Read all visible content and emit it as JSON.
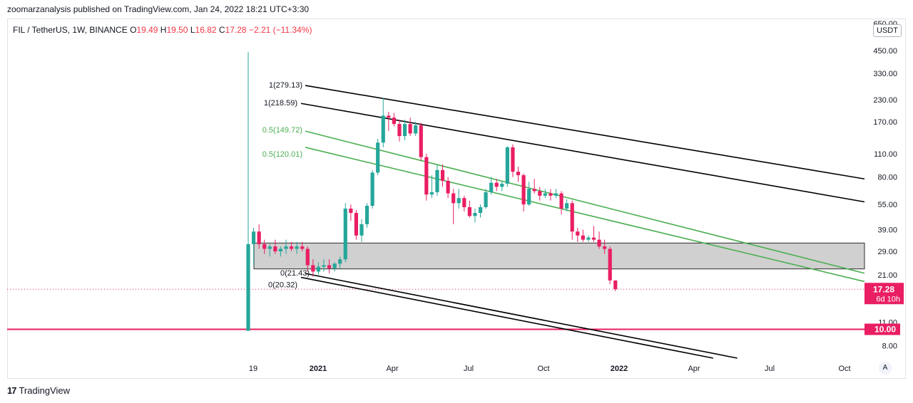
{
  "header": {
    "caption": "zoomarzanalysis published on TradingView.com, Jan 24, 2022 18:21 UTC+3:30"
  },
  "legend": {
    "symbol": "FIL / TetherUS, 1W, BINANCE",
    "open_label": "O",
    "open": "19.49",
    "high_label": "H",
    "high": "19.50",
    "low_label": "L",
    "low": "16.82",
    "close_label": "C",
    "close": "17.28",
    "change": "−2.21 (−11.34%)"
  },
  "price_axis": {
    "unit": "USDT",
    "current_price": "17.28",
    "countdown": "6d 10h",
    "line_price": "10.00"
  },
  "footer": {
    "brand": "TradingView"
  },
  "auto_button": "A",
  "colors": {
    "up": "#26a69a",
    "down": "#e91e63",
    "fib_green": "#4caf50",
    "channel": "#000000",
    "hline": "#e91e63",
    "zone_fill": "#c8c8c8"
  },
  "chart_data": {
    "type": "candlestick",
    "yscale": "log",
    "y_ticks": [
      "650.00",
      "450.00",
      "330.00",
      "230.00",
      "170.00",
      "110.00",
      "80.00",
      "55.00",
      "39.00",
      "29.00",
      "21.00",
      "11.00",
      "8.00"
    ],
    "x_ticks": [
      "19",
      "2021",
      "Apr",
      "Jul",
      "Oct",
      "2022",
      "Apr",
      "Jul",
      "Oct"
    ],
    "candles": [
      {
        "o": 9.8,
        "h": 440,
        "l": 9.8,
        "c": 32
      },
      {
        "o": 32,
        "h": 40,
        "l": 24,
        "c": 38
      },
      {
        "o": 38,
        "h": 42,
        "l": 30,
        "c": 32
      },
      {
        "o": 32,
        "h": 34,
        "l": 28,
        "c": 30
      },
      {
        "o": 30,
        "h": 32,
        "l": 27,
        "c": 31
      },
      {
        "o": 31,
        "h": 34,
        "l": 28,
        "c": 29
      },
      {
        "o": 29,
        "h": 31,
        "l": 27,
        "c": 30
      },
      {
        "o": 30,
        "h": 34,
        "l": 28,
        "c": 31
      },
      {
        "o": 31,
        "h": 33,
        "l": 29,
        "c": 30
      },
      {
        "o": 30,
        "h": 33,
        "l": 28,
        "c": 31
      },
      {
        "o": 31,
        "h": 33,
        "l": 29,
        "c": 30
      },
      {
        "o": 30,
        "h": 31,
        "l": 22,
        "c": 24
      },
      {
        "o": 24,
        "h": 26,
        "l": 20.5,
        "c": 22
      },
      {
        "o": 22,
        "h": 25,
        "l": 21,
        "c": 23.5
      },
      {
        "o": 23.5,
        "h": 26,
        "l": 22,
        "c": 24
      },
      {
        "o": 24,
        "h": 26,
        "l": 21.5,
        "c": 23
      },
      {
        "o": 23,
        "h": 25,
        "l": 22,
        "c": 24.5
      },
      {
        "o": 24.5,
        "h": 27,
        "l": 23,
        "c": 26
      },
      {
        "o": 26,
        "h": 56,
        "l": 25,
        "c": 52
      },
      {
        "o": 52,
        "h": 55,
        "l": 44,
        "c": 49
      },
      {
        "o": 49,
        "h": 51,
        "l": 34,
        "c": 36
      },
      {
        "o": 36,
        "h": 45,
        "l": 33,
        "c": 42
      },
      {
        "o": 42,
        "h": 56,
        "l": 40,
        "c": 54
      },
      {
        "o": 54,
        "h": 88,
        "l": 52,
        "c": 85
      },
      {
        "o": 85,
        "h": 135,
        "l": 82,
        "c": 128
      },
      {
        "o": 128,
        "h": 236,
        "l": 120,
        "c": 185
      },
      {
        "o": 185,
        "h": 195,
        "l": 150,
        "c": 180
      },
      {
        "o": 180,
        "h": 192,
        "l": 160,
        "c": 165
      },
      {
        "o": 165,
        "h": 175,
        "l": 130,
        "c": 140
      },
      {
        "o": 140,
        "h": 175,
        "l": 132,
        "c": 165
      },
      {
        "o": 165,
        "h": 180,
        "l": 140,
        "c": 145
      },
      {
        "o": 145,
        "h": 170,
        "l": 140,
        "c": 162
      },
      {
        "o": 162,
        "h": 168,
        "l": 100,
        "c": 105
      },
      {
        "o": 105,
        "h": 110,
        "l": 58,
        "c": 63
      },
      {
        "o": 63,
        "h": 82,
        "l": 60,
        "c": 65
      },
      {
        "o": 65,
        "h": 95,
        "l": 62,
        "c": 88
      },
      {
        "o": 88,
        "h": 95,
        "l": 70,
        "c": 76
      },
      {
        "o": 76,
        "h": 80,
        "l": 60,
        "c": 64
      },
      {
        "o": 64,
        "h": 68,
        "l": 42,
        "c": 56
      },
      {
        "o": 56,
        "h": 68,
        "l": 52,
        "c": 60
      },
      {
        "o": 60,
        "h": 62,
        "l": 50,
        "c": 53
      },
      {
        "o": 53,
        "h": 58,
        "l": 46,
        "c": 47
      },
      {
        "o": 47,
        "h": 52,
        "l": 43,
        "c": 49
      },
      {
        "o": 49,
        "h": 55,
        "l": 46,
        "c": 53
      },
      {
        "o": 53,
        "h": 68,
        "l": 52,
        "c": 65
      },
      {
        "o": 65,
        "h": 80,
        "l": 63,
        "c": 74
      },
      {
        "o": 74,
        "h": 78,
        "l": 66,
        "c": 70
      },
      {
        "o": 70,
        "h": 76,
        "l": 66,
        "c": 73
      },
      {
        "o": 73,
        "h": 122,
        "l": 70,
        "c": 120
      },
      {
        "o": 120,
        "h": 125,
        "l": 80,
        "c": 86
      },
      {
        "o": 86,
        "h": 92,
        "l": 75,
        "c": 82
      },
      {
        "o": 82,
        "h": 84,
        "l": 50,
        "c": 55
      },
      {
        "o": 55,
        "h": 75,
        "l": 54,
        "c": 68
      },
      {
        "o": 68,
        "h": 78,
        "l": 64,
        "c": 66
      },
      {
        "o": 66,
        "h": 70,
        "l": 58,
        "c": 62
      },
      {
        "o": 62,
        "h": 68,
        "l": 60,
        "c": 64
      },
      {
        "o": 64,
        "h": 68,
        "l": 58,
        "c": 62
      },
      {
        "o": 62,
        "h": 68,
        "l": 60,
        "c": 64
      },
      {
        "o": 64,
        "h": 66,
        "l": 48,
        "c": 52
      },
      {
        "o": 52,
        "h": 59,
        "l": 50,
        "c": 56
      },
      {
        "o": 56,
        "h": 58,
        "l": 34,
        "c": 38
      },
      {
        "o": 38,
        "h": 40,
        "l": 33,
        "c": 36
      },
      {
        "o": 36,
        "h": 39,
        "l": 33,
        "c": 34
      },
      {
        "o": 34,
        "h": 36,
        "l": 33,
        "c": 35
      },
      {
        "o": 35,
        "h": 41,
        "l": 33,
        "c": 34
      },
      {
        "o": 34,
        "h": 38,
        "l": 30,
        "c": 31
      },
      {
        "o": 31,
        "h": 34,
        "l": 28,
        "c": 30
      },
      {
        "o": 30,
        "h": 31,
        "l": 18.5,
        "c": 19.5
      },
      {
        "o": 19.49,
        "h": 19.5,
        "l": 16.82,
        "c": 17.28
      }
    ],
    "resistance_zone": {
      "low": 22.8,
      "high": 32.5
    },
    "horizontal_line": 10,
    "fib_labels": [
      {
        "text": "1(279.13)",
        "color": "black"
      },
      {
        "text": "1(218.59)",
        "color": "black"
      },
      {
        "text": "0.5(149.72)",
        "color": "green"
      },
      {
        "text": "0.5(120.01)",
        "color": "green"
      },
      {
        "text": "0(21.43)",
        "color": "black"
      },
      {
        "text": "0(20.32)",
        "color": "black"
      }
    ],
    "trendlines": [
      {
        "p1": [
          0,
          279.13
        ],
        "p2": [
          1.0,
          78
        ]
      },
      {
        "p1": [
          0,
          218.59
        ],
        "p2": [
          1.0,
          57
        ]
      },
      {
        "p1": [
          0,
          149.72
        ],
        "p2": [
          1.0,
          21.5
        ]
      },
      {
        "p1": [
          0,
          120.01
        ],
        "p2": [
          1.0,
          19.2
        ]
      },
      {
        "p1": [
          0,
          21.43
        ],
        "p2": [
          1.0,
          4.8
        ]
      },
      {
        "p1": [
          0,
          20.32
        ],
        "p2": [
          1.0,
          4.5
        ]
      }
    ]
  }
}
